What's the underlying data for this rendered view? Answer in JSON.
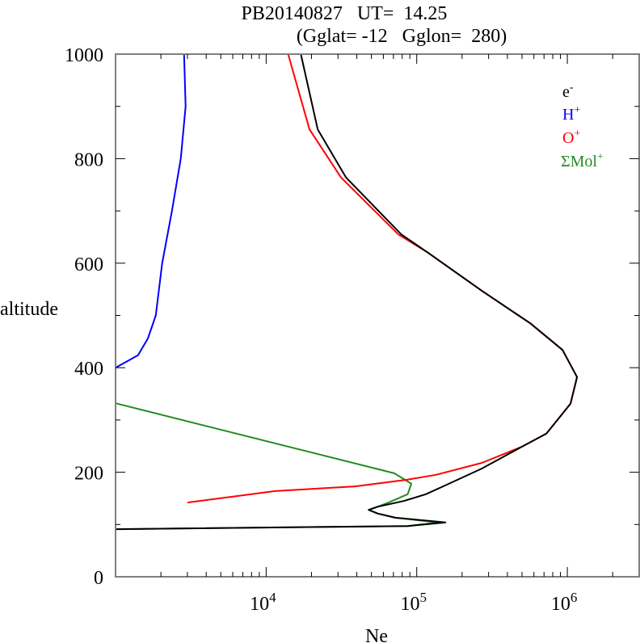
{
  "chart_data": {
    "type": "line",
    "title_line1": "PB20140827   UT=  14.25",
    "title_line2": "(Gglat= -12   Gglon=  280)",
    "xlabel": "Ne",
    "ylabel": "altitude",
    "xscale": "log",
    "xlim": [
      1000,
      3000000
    ],
    "ylim": [
      0,
      1000
    ],
    "x_ticks": [
      {
        "value": 10000,
        "base": "10",
        "exp": "4"
      },
      {
        "value": 100000,
        "base": "10",
        "exp": "5"
      },
      {
        "value": 1000000,
        "base": "10",
        "exp": "6"
      }
    ],
    "y_ticks": [
      {
        "value": 0,
        "label": "0"
      },
      {
        "value": 200,
        "label": "200"
      },
      {
        "value": 400,
        "label": "400"
      },
      {
        "value": 600,
        "label": "600"
      },
      {
        "value": 800,
        "label": "800"
      },
      {
        "value": 1000,
        "label": "1000"
      }
    ],
    "legend_position": "top-right",
    "series": [
      {
        "name": "e-",
        "label_base": "e",
        "label_sup": "-",
        "color": "#000000",
        "points": [
          [
            17000,
            1000
          ],
          [
            22000,
            856
          ],
          [
            33900,
            764
          ],
          [
            79000,
            655
          ],
          [
            119000,
            620
          ],
          [
            271000,
            547
          ],
          [
            567000,
            485
          ],
          [
            929000,
            434
          ],
          [
            1160000,
            382
          ],
          [
            1050000,
            331
          ],
          [
            726000,
            274
          ],
          [
            501000,
            249
          ],
          [
            270000,
            207
          ],
          [
            158000,
            176
          ],
          [
            115000,
            158
          ],
          [
            82000,
            145
          ],
          [
            55000,
            134
          ],
          [
            48000,
            128
          ],
          [
            55000,
            121
          ],
          [
            72000,
            113
          ],
          [
            155000,
            104
          ],
          [
            87000,
            97
          ],
          [
            1000,
            91
          ]
        ]
      },
      {
        "name": "H+",
        "label_base": "H",
        "label_sup": "+",
        "color": "#0000ff",
        "points": [
          [
            2850,
            1000
          ],
          [
            2920,
            900
          ],
          [
            2710,
            800
          ],
          [
            2370,
            700
          ],
          [
            2040,
            600
          ],
          [
            1850,
            500
          ],
          [
            1640,
            456
          ],
          [
            1410,
            424
          ],
          [
            1000,
            400
          ]
        ]
      },
      {
        "name": "O+",
        "label_base": "O",
        "label_sup": "+",
        "color": "#ff0000",
        "points": [
          [
            14000,
            1000
          ],
          [
            19400,
            856
          ],
          [
            31400,
            764
          ],
          [
            75400,
            655
          ],
          [
            119000,
            620
          ],
          [
            271000,
            547
          ],
          [
            567000,
            485
          ],
          [
            929000,
            434
          ],
          [
            1160000,
            382
          ],
          [
            1050000,
            331
          ],
          [
            726000,
            274
          ],
          [
            501000,
            249
          ],
          [
            271000,
            218
          ],
          [
            134000,
            195
          ],
          [
            87000,
            186
          ],
          [
            39000,
            173
          ],
          [
            11500,
            164
          ],
          [
            3000,
            142
          ]
        ]
      },
      {
        "name": "ΣMol+",
        "label_base": "ΣMol",
        "label_sup": "+",
        "color": "#228b22",
        "points": [
          [
            1000,
            332
          ],
          [
            71000,
            198
          ],
          [
            92000,
            178
          ],
          [
            87000,
            158
          ],
          [
            65000,
            142
          ],
          [
            55000,
            134
          ],
          [
            48000,
            128
          ],
          [
            55000,
            121
          ],
          [
            72000,
            113
          ],
          [
            140000,
            104
          ],
          [
            87000,
            97
          ],
          [
            1000,
            91
          ]
        ]
      }
    ]
  }
}
